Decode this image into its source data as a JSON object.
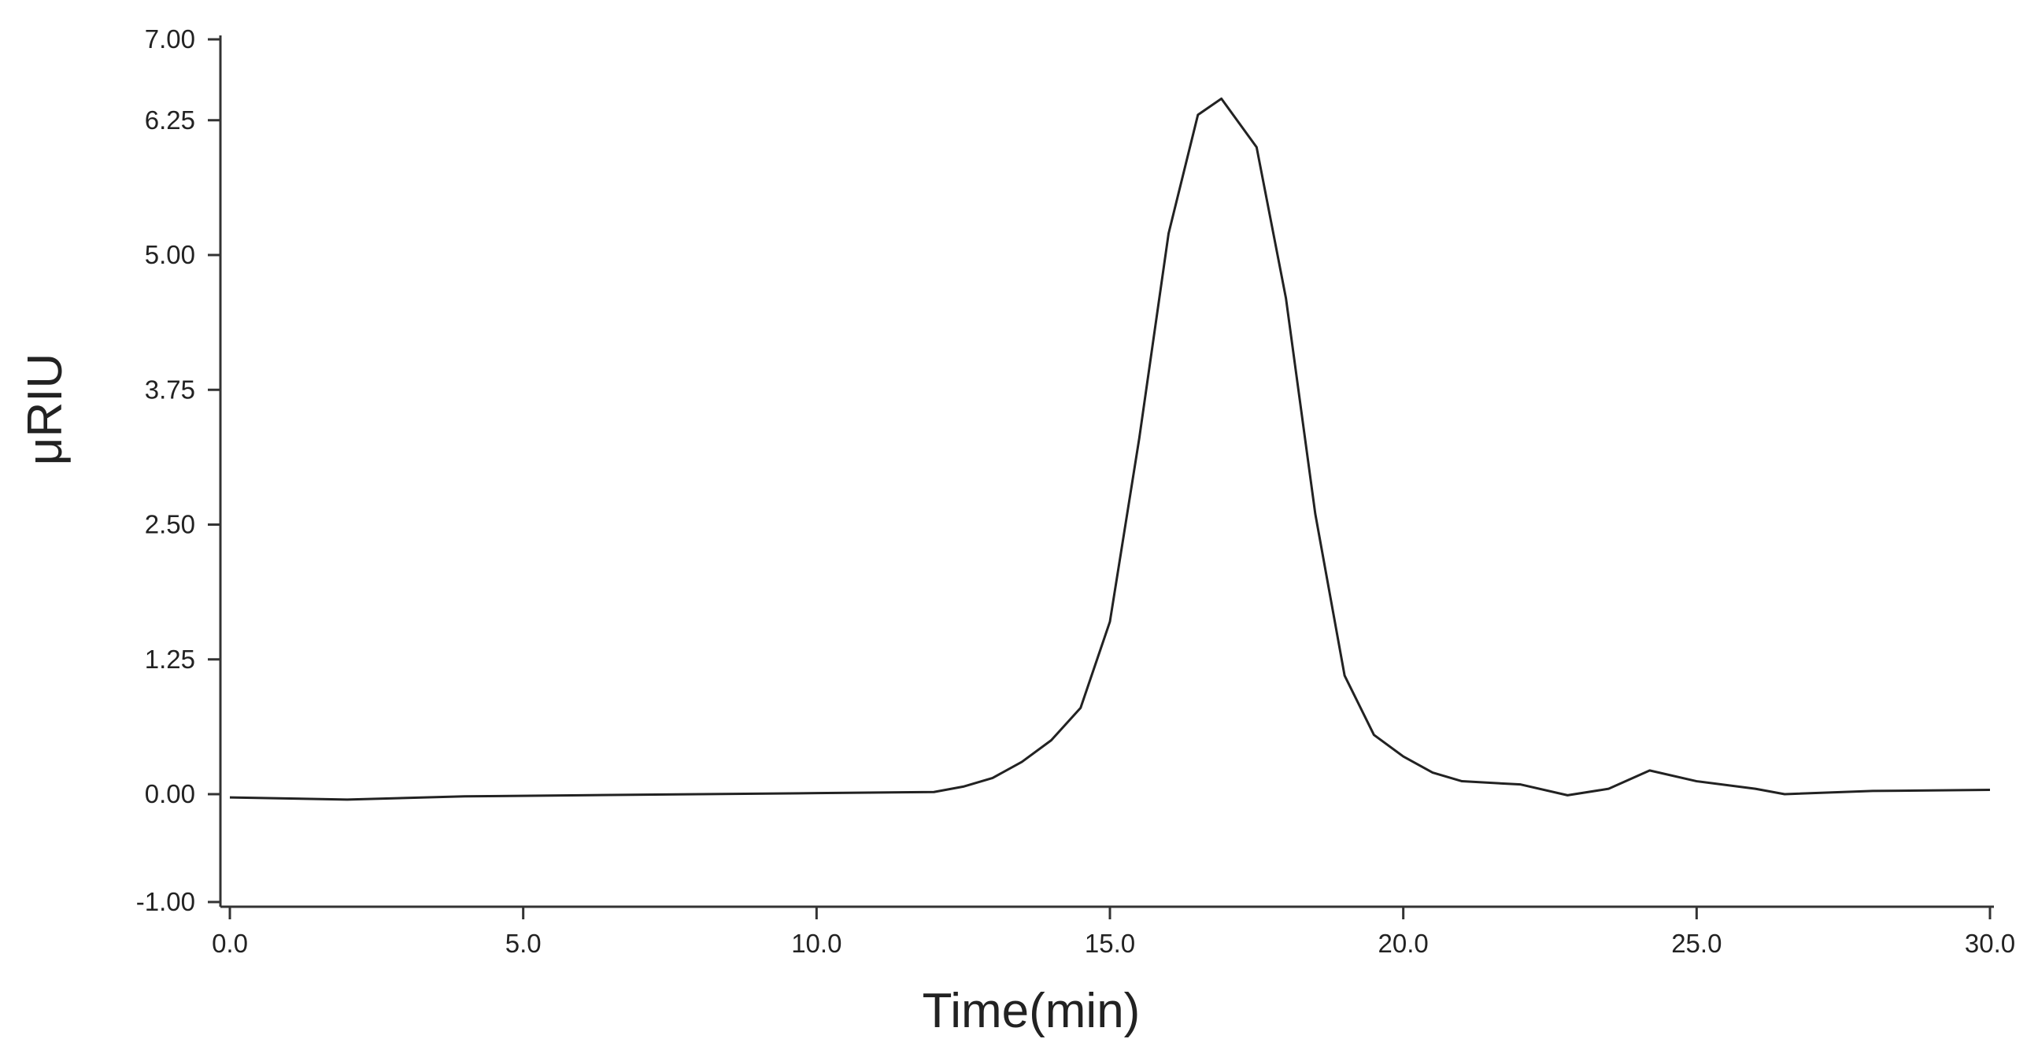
{
  "chart_data": {
    "type": "line",
    "x_label": "Time(min)",
    "y_label": "μRIU",
    "xlim": [
      0,
      30
    ],
    "ylim": [
      -1,
      7
    ],
    "xticks": [
      {
        "value": 0,
        "label": "0.0"
      },
      {
        "value": 5,
        "label": "5.0"
      },
      {
        "value": 10,
        "label": "10.0"
      },
      {
        "value": 15,
        "label": "15.0"
      },
      {
        "value": 20,
        "label": "20.0"
      },
      {
        "value": 25,
        "label": "25.0"
      },
      {
        "value": 30,
        "label": "30.0"
      }
    ],
    "yticks": [
      {
        "value": -1,
        "label": "-1.00"
      },
      {
        "value": 0,
        "label": "0.00"
      },
      {
        "value": 1.25,
        "label": "1.25"
      },
      {
        "value": 2.5,
        "label": "2.50"
      },
      {
        "value": 3.75,
        "label": "3.75"
      },
      {
        "value": 5,
        "label": "5.00"
      },
      {
        "value": 6.25,
        "label": "6.25"
      },
      {
        "value": 7,
        "label": "7.00"
      }
    ],
    "grid": false,
    "series": [
      {
        "color": "#222222",
        "x": [
          0,
          2,
          4,
          6,
          8,
          10,
          12,
          12.5,
          13,
          13.5,
          14,
          14.5,
          15,
          15.5,
          16,
          16.5,
          16.9,
          17.5,
          18,
          18.5,
          19,
          19.5,
          20,
          20.5,
          21,
          22,
          22.8,
          23.5,
          24.2,
          25,
          26,
          26.5,
          28,
          30
        ],
        "values": [
          -0.03,
          -0.05,
          -0.02,
          -0.01,
          0.0,
          0.01,
          0.02,
          0.07,
          0.15,
          0.3,
          0.5,
          0.8,
          1.6,
          3.3,
          5.2,
          6.3,
          6.45,
          6.0,
          4.6,
          2.6,
          1.1,
          0.55,
          0.35,
          0.2,
          0.12,
          0.09,
          -0.01,
          0.05,
          0.22,
          0.12,
          0.05,
          0.0,
          0.03,
          0.04
        ]
      }
    ]
  }
}
